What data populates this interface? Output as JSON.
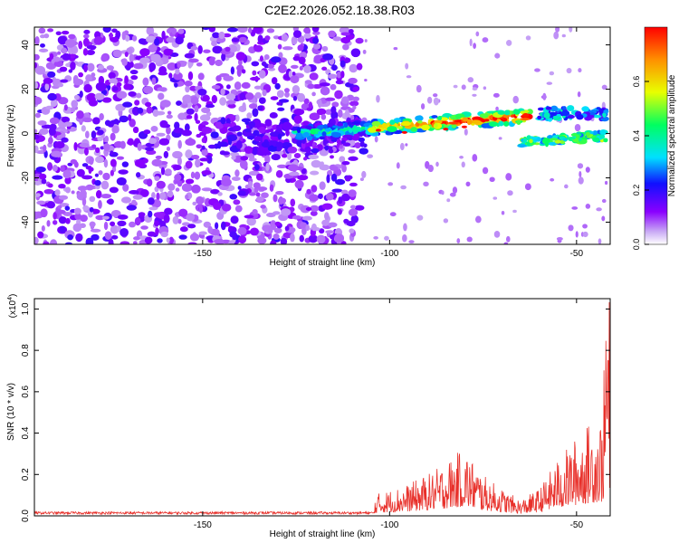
{
  "title": "C2E2.2026.052.18.38.R03",
  "chart_data": [
    {
      "type": "heatmap",
      "xlabel": "Height of straight line (km)",
      "ylabel": "Frequency (Hz)",
      "xlim": [
        -195,
        -41
      ],
      "ylim": [
        -50,
        48
      ],
      "xticks": [
        -150,
        -100,
        -50
      ],
      "yticks": [
        -40,
        -20,
        0,
        20,
        40
      ],
      "colorbar": {
        "label": "Normalized spectral amplitude",
        "range": [
          0,
          0.8
        ],
        "ticks": [
          0.0,
          0.2,
          0.4,
          0.6
        ]
      },
      "features": [
        {
          "x_from": -195,
          "x_to": -108,
          "description_value": "broadband noise, amplitude ~0.05-0.15"
        },
        {
          "x_from": -125,
          "x_to": -62,
          "freq_start": 0,
          "freq_end": 8,
          "peak_amplitude": 0.8
        },
        {
          "x_from": -65,
          "x_to": -42,
          "freq_start": -4,
          "freq_end": -1,
          "peak_amplitude": 0.55
        },
        {
          "x_from": -60,
          "x_to": -42,
          "freq_start": 9,
          "freq_end": 9,
          "peak_amplitude": 0.4
        }
      ]
    },
    {
      "type": "line",
      "xlabel": "Height of straight line (km)",
      "ylabel": "SNR (10 * v/v)",
      "yscale_label": "(x10",
      "yscale_exp": "4",
      "xlim": [
        -195,
        -41
      ],
      "ylim": [
        0,
        1.05
      ],
      "xticks": [
        -150,
        -100,
        -50
      ],
      "yticks": [
        0.0,
        0.2,
        0.4,
        0.6,
        0.8,
        1.0
      ],
      "series_color": "#e8302a",
      "envelope": [
        {
          "x": -195,
          "y": 0.02
        },
        {
          "x": -110,
          "y": 0.03
        },
        {
          "x": -103,
          "y": 0.1
        },
        {
          "x": -95,
          "y": 0.14
        },
        {
          "x": -88,
          "y": 0.2
        },
        {
          "x": -85,
          "y": 0.24
        },
        {
          "x": -80,
          "y": 0.3
        },
        {
          "x": -75,
          "y": 0.18
        },
        {
          "x": -70,
          "y": 0.12
        },
        {
          "x": -65,
          "y": 0.07
        },
        {
          "x": -60,
          "y": 0.12
        },
        {
          "x": -55,
          "y": 0.25
        },
        {
          "x": -50,
          "y": 0.35
        },
        {
          "x": -46,
          "y": 0.42
        },
        {
          "x": -43,
          "y": 0.45
        },
        {
          "x": -42,
          "y": 1.05
        }
      ]
    }
  ]
}
